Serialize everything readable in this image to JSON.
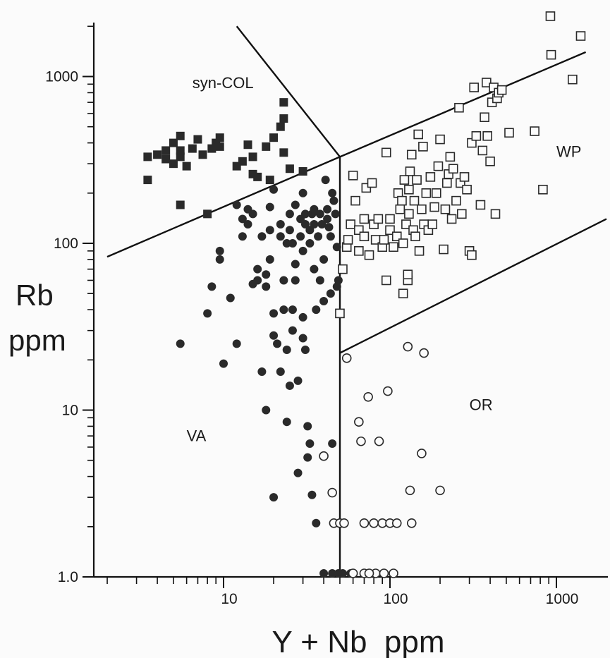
{
  "chart_data": {
    "type": "scatter",
    "title": "",
    "xlabel": "Y + Nb  ppm",
    "ylabel": [
      "Rb",
      "ppm"
    ],
    "xscale": "log",
    "yscale": "log",
    "xlim": [
      2,
      2000
    ],
    "ylim": [
      1,
      2000
    ],
    "grid": false,
    "legend": "none",
    "x_ticks": [
      {
        "value": 10,
        "label": "10"
      },
      {
        "value": 100,
        "label": "100"
      },
      {
        "value": 1000,
        "label": "1000"
      }
    ],
    "y_ticks": [
      {
        "value": 1,
        "label": "1.0"
      },
      {
        "value": 10,
        "label": "10"
      },
      {
        "value": 100,
        "label": "100"
      },
      {
        "value": 1000,
        "label": "1000"
      }
    ],
    "region_labels": [
      {
        "text": "syn-COL",
        "x": 6.5,
        "y": 850
      },
      {
        "text": "WP",
        "x": 1000,
        "y": 330
      },
      {
        "text": "VA",
        "x": 6.0,
        "y": 6.5
      },
      {
        "text": "OR",
        "x": 300,
        "y": 10
      }
    ],
    "boundaries": [
      {
        "points": [
          [
            2,
            83
          ],
          [
            50,
            330
          ],
          [
            1500,
            1400
          ]
        ]
      },
      {
        "points": [
          [
            12,
            2000
          ],
          [
            50,
            330
          ]
        ]
      },
      {
        "points": [
          [
            50,
            330
          ],
          [
            50,
            1
          ]
        ]
      },
      {
        "points": [
          [
            50,
            22
          ],
          [
            2000,
            140
          ]
        ]
      }
    ],
    "series": [
      {
        "marker": "filled-square",
        "color": "#2a2a2a",
        "points": [
          [
            3.5,
            330
          ],
          [
            3.5,
            240
          ],
          [
            4.0,
            340
          ],
          [
            4.5,
            320
          ],
          [
            4.5,
            360
          ],
          [
            5.0,
            300
          ],
          [
            5.0,
            400
          ],
          [
            5.5,
            440
          ],
          [
            5.5,
            360
          ],
          [
            5.5,
            330
          ],
          [
            5.5,
            170
          ],
          [
            6.0,
            290
          ],
          [
            6.5,
            370
          ],
          [
            7.0,
            420
          ],
          [
            7.5,
            340
          ],
          [
            8.0,
            150
          ],
          [
            8.5,
            370
          ],
          [
            9.0,
            400
          ],
          [
            9.5,
            430
          ],
          [
            9.5,
            380
          ],
          [
            12,
            290
          ],
          [
            13,
            310
          ],
          [
            14,
            390
          ],
          [
            15,
            330
          ],
          [
            15,
            260
          ],
          [
            16,
            250
          ],
          [
            18,
            380
          ],
          [
            19,
            240
          ],
          [
            20,
            430
          ],
          [
            22,
            500
          ],
          [
            23,
            350
          ],
          [
            23,
            560
          ],
          [
            23,
            700
          ],
          [
            25,
            280
          ],
          [
            30,
            270
          ]
        ]
      },
      {
        "marker": "filled-circle",
        "color": "#2a2a2a",
        "points": [
          [
            5.5,
            25
          ],
          [
            8,
            38
          ],
          [
            8.5,
            55
          ],
          [
            9.5,
            90
          ],
          [
            9.5,
            80
          ],
          [
            10,
            19
          ],
          [
            11,
            47
          ],
          [
            12,
            170
          ],
          [
            12,
            25
          ],
          [
            13,
            140
          ],
          [
            13,
            110
          ],
          [
            14,
            130
          ],
          [
            14,
            160
          ],
          [
            15,
            150
          ],
          [
            15,
            57
          ],
          [
            16,
            60
          ],
          [
            16,
            70
          ],
          [
            17,
            17
          ],
          [
            17,
            110
          ],
          [
            18,
            55
          ],
          [
            18,
            65
          ],
          [
            18,
            10
          ],
          [
            19,
            80
          ],
          [
            19,
            165
          ],
          [
            19,
            120
          ],
          [
            20,
            210
          ],
          [
            20,
            38
          ],
          [
            20,
            28
          ],
          [
            20,
            3
          ],
          [
            21,
            25
          ],
          [
            22,
            110
          ],
          [
            22,
            130
          ],
          [
            22,
            17
          ],
          [
            23,
            40
          ],
          [
            23,
            60
          ],
          [
            24,
            23
          ],
          [
            24,
            100
          ],
          [
            24,
            8.5
          ],
          [
            25,
            120
          ],
          [
            25,
            150
          ],
          [
            25,
            14
          ],
          [
            26,
            100
          ],
          [
            26,
            40
          ],
          [
            26,
            30
          ],
          [
            27,
            170
          ],
          [
            27,
            75
          ],
          [
            27,
            60
          ],
          [
            28,
            15
          ],
          [
            28,
            4.2
          ],
          [
            29,
            140
          ],
          [
            29,
            110
          ],
          [
            30,
            200
          ],
          [
            30,
            90
          ],
          [
            30,
            36
          ],
          [
            30,
            27
          ],
          [
            31,
            150
          ],
          [
            31,
            130
          ],
          [
            31,
            23
          ],
          [
            32,
            5.2
          ],
          [
            32,
            8
          ],
          [
            33,
            120
          ],
          [
            33,
            100
          ],
          [
            34,
            150
          ],
          [
            34,
            3.1
          ],
          [
            35,
            130
          ],
          [
            35,
            160
          ],
          [
            35,
            70
          ],
          [
            36,
            40
          ],
          [
            36,
            2.1
          ],
          [
            37,
            110
          ],
          [
            38,
            150
          ],
          [
            38,
            60
          ],
          [
            39,
            130
          ],
          [
            40,
            80
          ],
          [
            40,
            45
          ],
          [
            41,
            240
          ],
          [
            42,
            160
          ],
          [
            42,
            140
          ],
          [
            43,
            125
          ],
          [
            44,
            110
          ],
          [
            44,
            50
          ],
          [
            45,
            200
          ],
          [
            45,
            6.3
          ],
          [
            46,
            180
          ],
          [
            47,
            150
          ],
          [
            48,
            55
          ],
          [
            48,
            95
          ],
          [
            49,
            60
          ],
          [
            49,
            1.05
          ],
          [
            33,
            6.3
          ],
          [
            40,
            1.05
          ],
          [
            45,
            1.05
          ],
          [
            52,
            1.05
          ],
          [
            58,
            1.05
          ]
        ]
      },
      {
        "marker": "open-square",
        "color": "#2a2a2a",
        "points": [
          [
            50,
            38
          ],
          [
            52,
            70
          ],
          [
            55,
            95
          ],
          [
            56,
            105
          ],
          [
            58,
            130
          ],
          [
            60,
            255
          ],
          [
            62,
            180
          ],
          [
            65,
            120
          ],
          [
            65,
            90
          ],
          [
            70,
            110
          ],
          [
            70,
            140
          ],
          [
            72,
            215
          ],
          [
            75,
            85
          ],
          [
            78,
            230
          ],
          [
            80,
            130
          ],
          [
            82,
            105
          ],
          [
            85,
            140
          ],
          [
            90,
            95
          ],
          [
            92,
            105
          ],
          [
            95,
            60
          ],
          [
            95,
            350
          ],
          [
            100,
            120
          ],
          [
            100,
            140
          ],
          [
            105,
            95
          ],
          [
            110,
            110
          ],
          [
            112,
            200
          ],
          [
            115,
            160
          ],
          [
            118,
            180
          ],
          [
            120,
            50
          ],
          [
            120,
            100
          ],
          [
            122,
            240
          ],
          [
            125,
            130
          ],
          [
            128,
            60
          ],
          [
            128,
            65
          ],
          [
            130,
            150
          ],
          [
            130,
            210
          ],
          [
            132,
            270
          ],
          [
            135,
            340
          ],
          [
            138,
            120
          ],
          [
            140,
            180
          ],
          [
            142,
            110
          ],
          [
            145,
            240
          ],
          [
            148,
            450
          ],
          [
            150,
            90
          ],
          [
            155,
            160
          ],
          [
            158,
            380
          ],
          [
            160,
            130
          ],
          [
            165,
            200
          ],
          [
            170,
            120
          ],
          [
            175,
            250
          ],
          [
            180,
            130
          ],
          [
            185,
            165
          ],
          [
            190,
            200
          ],
          [
            195,
            290
          ],
          [
            200,
            420
          ],
          [
            210,
            92
          ],
          [
            215,
            160
          ],
          [
            220,
            230
          ],
          [
            225,
            260
          ],
          [
            230,
            330
          ],
          [
            235,
            140
          ],
          [
            240,
            280
          ],
          [
            250,
            180
          ],
          [
            260,
            650
          ],
          [
            265,
            230
          ],
          [
            270,
            150
          ],
          [
            280,
            250
          ],
          [
            290,
            210
          ],
          [
            300,
            90
          ],
          [
            310,
            400
          ],
          [
            320,
            860
          ],
          [
            330,
            440
          ],
          [
            350,
            170
          ],
          [
            360,
            360
          ],
          [
            370,
            570
          ],
          [
            380,
            920
          ],
          [
            385,
            440
          ],
          [
            400,
            310
          ],
          [
            410,
            700
          ],
          [
            420,
            860
          ],
          [
            430,
            150
          ],
          [
            440,
            740
          ],
          [
            450,
            800
          ],
          [
            470,
            830
          ],
          [
            520,
            460
          ],
          [
            740,
            470
          ],
          [
            830,
            210
          ],
          [
            920,
            2300
          ],
          [
            930,
            1350
          ],
          [
            1250,
            960
          ],
          [
            1400,
            1750
          ],
          [
            310,
            85
          ]
        ]
      },
      {
        "marker": "open-circle",
        "color": "#2a2a2a",
        "points": [
          [
            40,
            5.3
          ],
          [
            45,
            3.2
          ],
          [
            46,
            2.1
          ],
          [
            50,
            2.1
          ],
          [
            53,
            2.1
          ],
          [
            55,
            20.5
          ],
          [
            65,
            8.5
          ],
          [
            67,
            6.5
          ],
          [
            70,
            2.1
          ],
          [
            70,
            1.05
          ],
          [
            74,
            12
          ],
          [
            80,
            2.1
          ],
          [
            82,
            1.05
          ],
          [
            86,
            6.5
          ],
          [
            90,
            2.1
          ],
          [
            92,
            1.05
          ],
          [
            97,
            13
          ],
          [
            100,
            2.1
          ],
          [
            110,
            2.1
          ],
          [
            128,
            24
          ],
          [
            132,
            3.3
          ],
          [
            135,
            2.1
          ],
          [
            155,
            5.5
          ],
          [
            160,
            22
          ],
          [
            200,
            3.3
          ],
          [
            60,
            1.05
          ],
          [
            75,
            1.05
          ],
          [
            105,
            1.05
          ]
        ]
      }
    ]
  }
}
